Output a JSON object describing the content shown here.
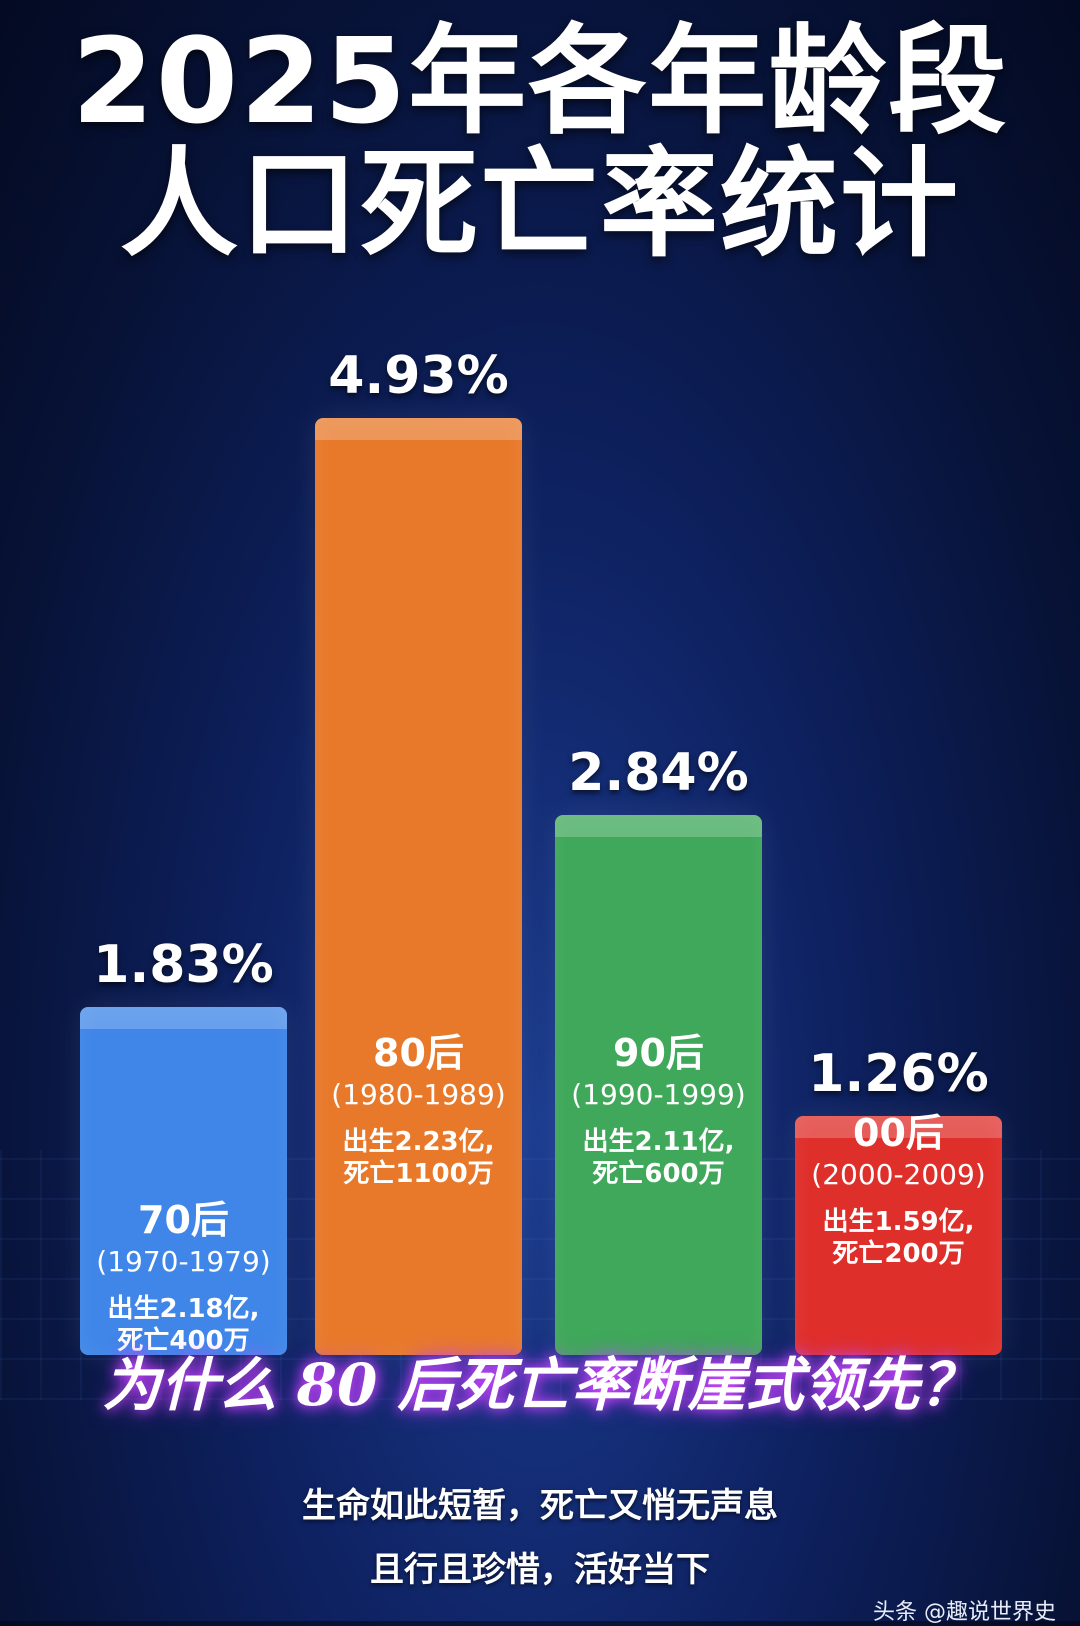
{
  "title_line1": "2025年各年龄段",
  "title_line2": "人口死亡率统计",
  "chart_data": {
    "type": "bar",
    "categories": [
      "70后",
      "80后",
      "90后",
      "00后"
    ],
    "values": [
      1.83,
      4.93,
      2.84,
      1.26
    ],
    "value_labels": [
      "1.83%",
      "4.93%",
      "2.84%",
      "1.26%"
    ],
    "year_ranges": [
      "(1970-1979)",
      "(1980-1989)",
      "(1990-1999)",
      "(2000-2009)"
    ],
    "births": [
      "出生2.18亿,",
      "出生2.23亿,",
      "出生2.11亿,",
      "出生1.59亿,"
    ],
    "deaths": [
      "死亡400万",
      "死亡1100万",
      "死亡600万",
      "死亡200万"
    ],
    "colors": [
      "#3f86e8",
      "#e8792b",
      "#3fa85a",
      "#df2f2b"
    ],
    "unit": "%"
  },
  "question": "为什么 80 后死亡率断崖式领先？",
  "subtitle_line1": "生命如此短暂，死亡又悄无声息",
  "subtitle_line2": "且行且珍惜，活好当下",
  "watermark": "头条 @趣说世界史"
}
